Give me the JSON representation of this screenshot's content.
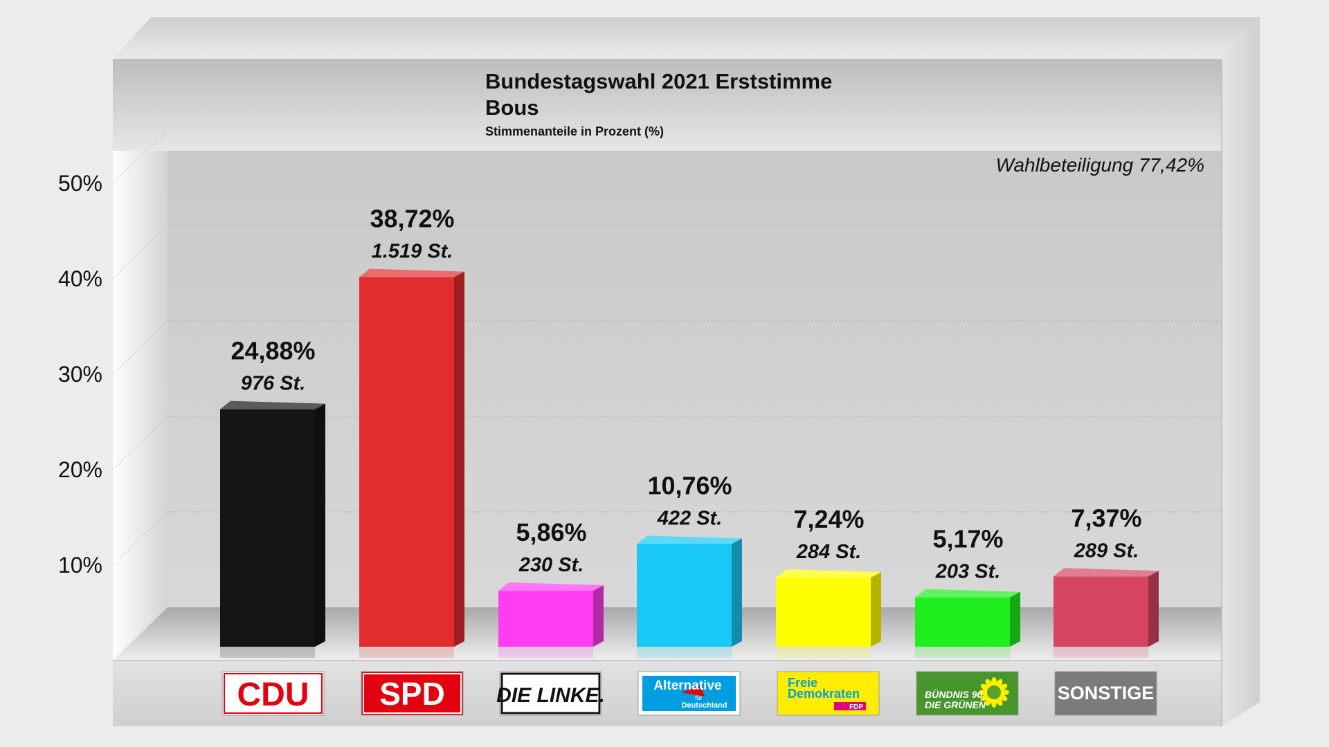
{
  "chart_data": {
    "type": "bar",
    "title": "Bundestagswahl 2021 Erststimme",
    "subtitle": "Bous",
    "subnote": "Stimmenanteile in Prozent (%)",
    "annotation": "Wahlbeteiligung 77,42%",
    "categories": [
      "CDU",
      "SPD",
      "DIE LINKE.",
      "Alternative für Deutschland",
      "Freie Demokraten FDP",
      "BÜNDNIS 90 DIE GRÜNEN",
      "SONSTIGE"
    ],
    "values": [
      24.88,
      38.72,
      5.86,
      10.76,
      7.24,
      5.17,
      7.37
    ],
    "value_labels": [
      "24,88%",
      "38,72%",
      "5,86%",
      "10,76%",
      "7,24%",
      "5,17%",
      "7,37%"
    ],
    "votes_labels": [
      "976 St.",
      "1.519 St.",
      "230 St.",
      "422 St.",
      "284 St.",
      "203 St.",
      "289 St."
    ],
    "colors": [
      "#151515",
      "#e12d2d",
      "#ff3cf0",
      "#18c8f5",
      "#ffff00",
      "#1eee1e",
      "#d64560"
    ],
    "y_ticks": [
      10,
      20,
      30,
      40,
      50
    ],
    "y_tick_labels": [
      "10%",
      "20%",
      "30%",
      "40%",
      "50%"
    ],
    "ylim": [
      0,
      50
    ],
    "grid": true,
    "logos": [
      {
        "lines": [
          "CDU"
        ],
        "bg": "#ffffff",
        "fg": "#e3000f",
        "border": "#e3000f"
      },
      {
        "lines": [
          "SPD"
        ],
        "bg": "#e3000f",
        "fg": "#ffffff",
        "border": "#ffffff"
      },
      {
        "lines": [
          "DIE LINKE."
        ],
        "bg": "#ffffff",
        "fg": "#111111",
        "border": "#111111"
      },
      {
        "lines": [
          "Alternative",
          "für",
          "Deutschland"
        ],
        "bg": "#ffffff",
        "fg": "#ffffff",
        "accent": "#009ee0",
        "border": "#009ee0"
      },
      {
        "lines": [
          "Freie",
          "Demokraten",
          "FDP"
        ],
        "bg": "#ffed00",
        "fg": "#009ee3",
        "accent": "#e5007d",
        "border": "#ffed00"
      },
      {
        "lines": [
          "BÜNDNIS 90",
          "DIE GRÜNEN"
        ],
        "bg": "#46962b",
        "fg": "#ffffff",
        "accent": "#ffee00",
        "border": "#46962b"
      },
      {
        "lines": [
          "SONSTIGE"
        ],
        "bg": "#7b7b7b",
        "fg": "#ffffff",
        "border": "#7b7b7b"
      }
    ]
  }
}
